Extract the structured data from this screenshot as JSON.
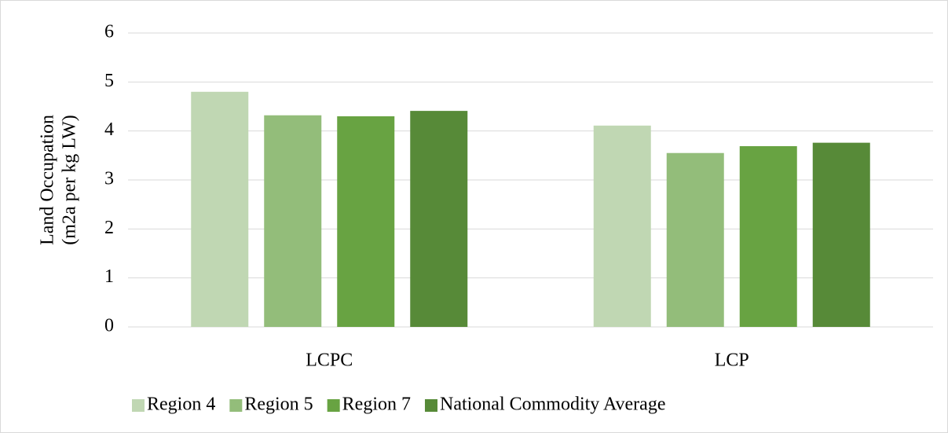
{
  "chart_data": {
    "type": "bar",
    "ylabel": [
      "Land Occupation",
      "(m2a per kg LW)"
    ],
    "categories": [
      "LCPC",
      "LCP"
    ],
    "series": [
      {
        "name": "Region 4",
        "color": "#c0d7b3",
        "values": [
          4.8,
          4.11
        ]
      },
      {
        "name": "Region 5",
        "color": "#93bd7a",
        "values": [
          4.32,
          3.55
        ]
      },
      {
        "name": "Region 7",
        "color": "#68a342",
        "values": [
          4.3,
          3.69
        ]
      },
      {
        "name": "National Commodity Average",
        "color": "#578a38",
        "values": [
          4.41,
          3.76
        ]
      }
    ],
    "ylim": [
      0,
      6
    ],
    "yticks": [
      0,
      1,
      2,
      3,
      4,
      5,
      6
    ],
    "grid": true,
    "legend": "bottom"
  }
}
